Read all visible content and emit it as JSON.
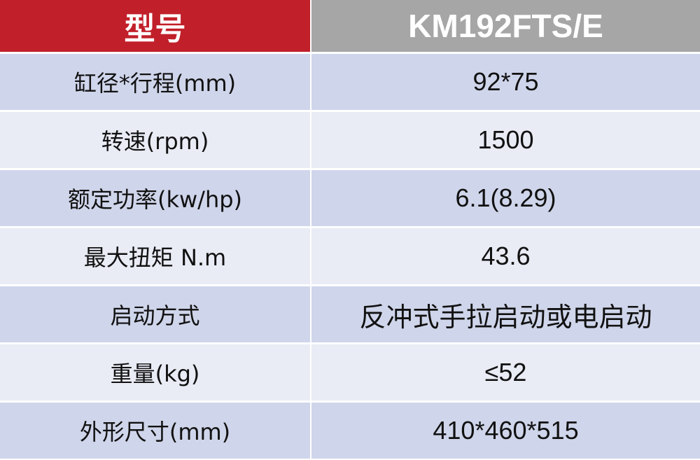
{
  "header": {
    "label": "型号",
    "model": "KM192FTS/E"
  },
  "rows": [
    {
      "key": "缸径*行程(mm)",
      "value": "92*75"
    },
    {
      "key": "转速(rpm)",
      "value": "1500"
    },
    {
      "key": "额定功率(kw/hp)",
      "value": "6.1(8.29)"
    },
    {
      "key": "最大扭矩 N.m",
      "value": "43.6"
    },
    {
      "key": "启动方式",
      "value": "反冲式手拉启动或电启动"
    },
    {
      "key": "重量(kg)",
      "value": "≤52"
    },
    {
      "key": "外形尺寸(mm)",
      "value": "410*460*515"
    }
  ],
  "colors": {
    "header_left": "#c1202a",
    "header_right": "#a6a6a6",
    "row_dark": "#cfd5ea",
    "row_light": "#e9ebf5"
  }
}
